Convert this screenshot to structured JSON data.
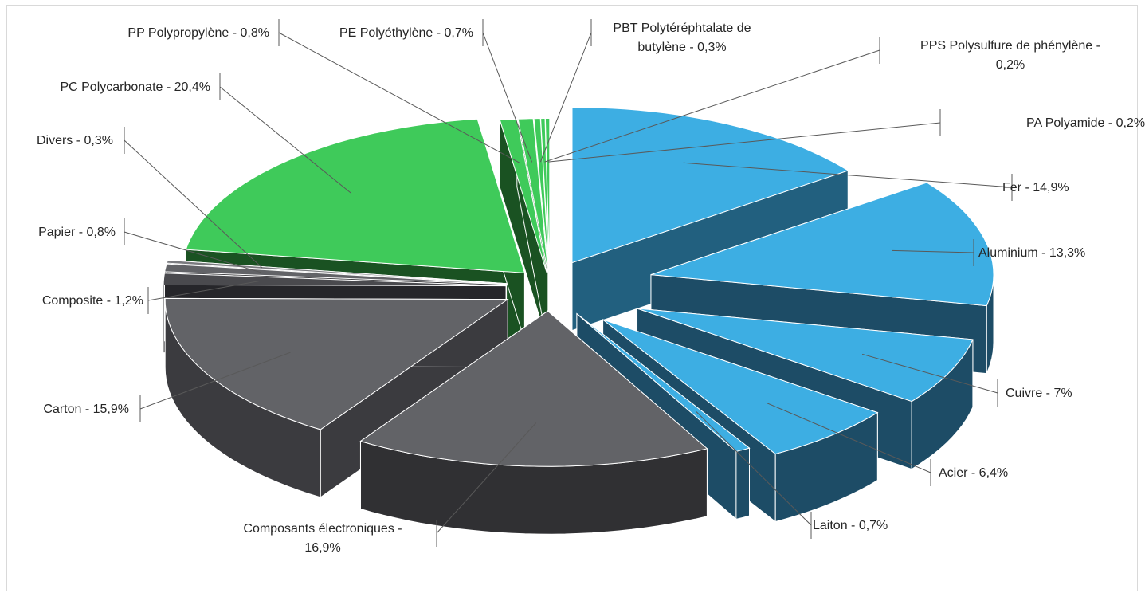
{
  "chart_data": {
    "type": "pie",
    "title": "",
    "legend": "none",
    "slices": [
      {
        "label": "Fer - 14,9%",
        "name": "Fer",
        "value": 14.9,
        "color": "#3daee3",
        "side": "#22607f"
      },
      {
        "label": "Aluminium - 13,3%",
        "name": "Aluminium",
        "value": 13.3,
        "color": "#3daee3",
        "side": "#1d4c66"
      },
      {
        "label": "Cuivre - 7%",
        "name": "Cuivre",
        "value": 7.0,
        "color": "#3daee3",
        "side": "#1d4c66"
      },
      {
        "label": "Acier - 6,4%",
        "name": "Acier",
        "value": 6.4,
        "color": "#3daee3",
        "side": "#1d4c66"
      },
      {
        "label": "Laiton - 0,7%",
        "name": "Laiton",
        "value": 0.7,
        "color": "#3daee3",
        "side": "#1d4c66"
      },
      {
        "label": "Composants électroniques - 16,9%",
        "name": "Composants électroniques",
        "value": 16.9,
        "color": "#626367",
        "side": "#303033"
      },
      {
        "label": "Carton - 15,9%",
        "name": "Carton",
        "value": 15.9,
        "color": "#626367",
        "side": "#3b3b3f"
      },
      {
        "label": "Composite - 1,2%",
        "name": "Composite",
        "value": 1.2,
        "color": "#4a4a4e",
        "side": "#26262a"
      },
      {
        "label": "Papier - 0,8%",
        "name": "Papier",
        "value": 0.8,
        "color": "#626367",
        "side": "#2a2a2d"
      },
      {
        "label": "Divers - 0,3%",
        "name": "Divers",
        "value": 0.3,
        "color": "#7a7b7f",
        "side": "#3a3a3d"
      },
      {
        "label": "PC Polycarbonate - 20,4%",
        "name": "PC Polycarbonate",
        "value": 20.4,
        "color": "#3fca5a",
        "side": "#1a5222"
      },
      {
        "label": "PP Polypropylène - 0,8%",
        "name": "PP Polypropylène",
        "value": 0.8,
        "color": "#3fca5a",
        "side": "#1a5222"
      },
      {
        "label": "PE Polyéthylène - 0,7%",
        "name": "PE Polyéthylène",
        "value": 0.7,
        "color": "#3fca5a",
        "side": "#1a5222"
      },
      {
        "label": "PBT Polytéréphtalate de butylène - 0,3%",
        "name": "PBT Polytéréphtalate de butylène",
        "value": 0.3,
        "color": "#3fca5a",
        "side": "#1a5222"
      },
      {
        "label": "PPS Polysulfure de phénylène - 0,2%",
        "name": "PPS Polysulfure de phénylène",
        "value": 0.2,
        "color": "#3fca5a",
        "side": "#1a5222"
      },
      {
        "label": "PA Polyamide - 0,2%",
        "name": "PA Polyamide",
        "value": 0.2,
        "color": "#3fca5a",
        "side": "#1a5222"
      }
    ]
  }
}
